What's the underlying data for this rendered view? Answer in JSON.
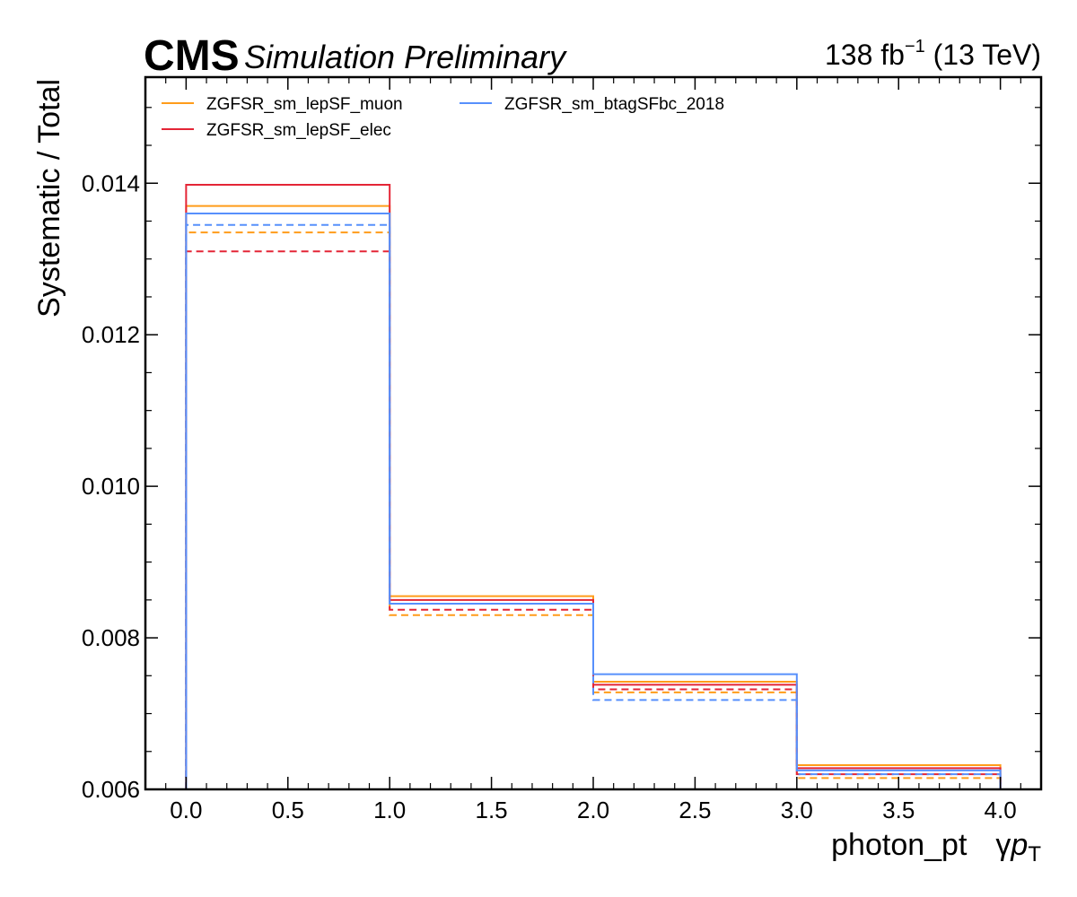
{
  "header": {
    "experiment": "CMS",
    "label": "Simulation Preliminary",
    "lumi_prefix": "138 fb",
    "lumi_exp": "−1",
    "lumi_suffix": " (13 TeV)"
  },
  "chart_data": {
    "type": "step",
    "xlabel": "photon_pt",
    "xlabel_extra_greek": "γ",
    "xlabel_extra_main": "p",
    "xlabel_extra_sub": "T",
    "ylabel": "Systematic / Total",
    "xlim": [
      -0.2,
      4.2
    ],
    "ylim": [
      0.006,
      0.0154
    ],
    "bin_edges": [
      0,
      1,
      2,
      3,
      4
    ],
    "xticks": [
      "0.0",
      "0.5",
      "1.0",
      "1.5",
      "2.0",
      "2.5",
      "3.0",
      "3.5",
      "4.0"
    ],
    "yticks": [
      "0.006",
      "0.008",
      "0.010",
      "0.012",
      "0.014"
    ],
    "legend_position": "top-left",
    "series": [
      {
        "name": "ZGFSR_sm_lepSF_muon",
        "color": "#ff9c1a",
        "up": [
          0.0137,
          0.00855,
          0.00742,
          0.00632
        ],
        "down": [
          0.01335,
          0.0083,
          0.00728,
          0.00615
        ]
      },
      {
        "name": "ZGFSR_sm_lepSF_elec",
        "color": "#e42536",
        "up": [
          0.01398,
          0.0085,
          0.00738,
          0.00628
        ],
        "down": [
          0.0131,
          0.00837,
          0.00732,
          0.0062
        ]
      },
      {
        "name": "ZGFSR_sm_btagSFbc_2018",
        "color": "#5790fc",
        "up": [
          0.0136,
          0.00845,
          0.00752,
          0.00625
        ],
        "down": [
          0.01345,
          0.00845,
          0.00718,
          0.0062
        ]
      }
    ]
  }
}
